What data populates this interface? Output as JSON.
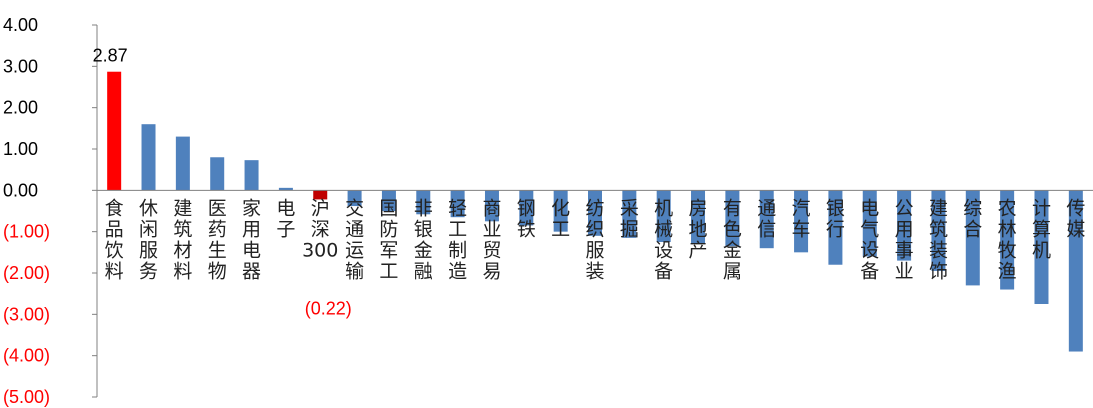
{
  "chart_data": {
    "type": "bar",
    "title": "",
    "xlabel": "",
    "ylabel": "",
    "ylim": [
      -5,
      4
    ],
    "yticks": [
      4,
      3,
      2,
      1,
      0,
      -1,
      -2,
      -3,
      -4,
      -5
    ],
    "ytick_labels": [
      "4.00",
      "3.00",
      "2.00",
      "1.00",
      "0.00",
      "(1.00)",
      "(2.00)",
      "(3.00)",
      "(4.00)",
      "(5.00)"
    ],
    "grid": false,
    "legend": "none",
    "categories": [
      "食品饮料",
      "休闲服务",
      "建筑材料",
      "医药生物",
      "家用电器",
      "电子",
      "沪深300",
      "交通运输",
      "国防军工",
      "非银金融",
      "轻工制造",
      "商业贸易",
      "钢铁",
      "化工",
      "纺织服装",
      "采掘",
      "机械设备",
      "房地产",
      "有色金属",
      "通信",
      "汽车",
      "银行",
      "电气设备",
      "公用事业",
      "建筑装饰",
      "综合",
      "农林牧渔",
      "计算机",
      "传媒"
    ],
    "values": [
      2.87,
      1.6,
      1.3,
      0.8,
      0.73,
      0.06,
      -0.22,
      -0.38,
      -0.5,
      -0.58,
      -0.65,
      -0.75,
      -0.85,
      -1.0,
      -1.1,
      -1.15,
      -1.25,
      -1.3,
      -1.35,
      -1.4,
      -1.5,
      -1.8,
      -1.6,
      -1.7,
      -1.95,
      -2.3,
      -2.4,
      -2.75,
      -3.9
    ],
    "data_labels": [
      {
        "index": 0,
        "text": "2.87"
      },
      {
        "index": 6,
        "text": "(0.22)"
      }
    ],
    "colors": {
      "default_bar": "#4F81BD",
      "highlight_bar": "#FF0000",
      "benchmark_bar": "#C00000",
      "axis": "#808080",
      "negative_tick": "#FF0000",
      "positive_tick": "#000000",
      "benchmark_label": "#FF0000"
    },
    "highlight_indices": [
      0
    ],
    "benchmark_indices": [
      6
    ]
  }
}
